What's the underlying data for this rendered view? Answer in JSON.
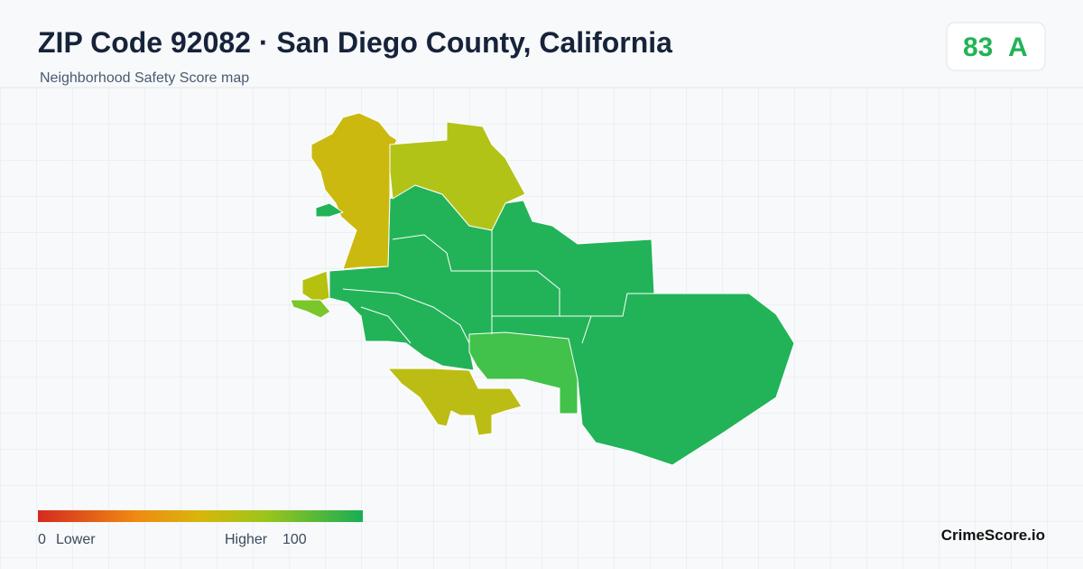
{
  "header": {
    "title": "ZIP Code 92082 · San Diego County, California",
    "subtitle": "Neighborhood Safety Score map"
  },
  "score": {
    "value": 83,
    "grade": "A"
  },
  "legend": {
    "min": 0,
    "min_label": "Lower",
    "max_label": "Higher",
    "max": 100
  },
  "footer": {
    "brand": "CrimeScore.io"
  }
}
